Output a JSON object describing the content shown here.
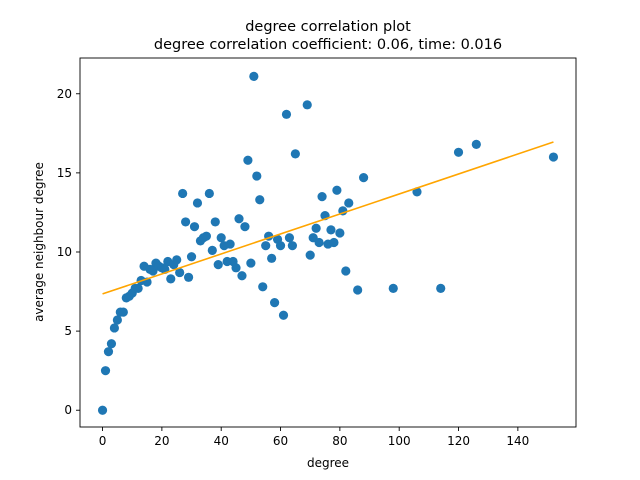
{
  "chart_data": {
    "type": "scatter",
    "title": "degree correlation plot",
    "subtitle": "degree correlation coefficient: 0.06, time: 0.016",
    "xlabel": "degree",
    "ylabel": "average neighbour degree",
    "xlim": [
      -7.6,
      159.6
    ],
    "ylim": [
      -1.06,
      22.26
    ],
    "xticks": [
      0,
      20,
      40,
      60,
      80,
      100,
      120,
      140
    ],
    "yticks": [
      0,
      5,
      10,
      15,
      20
    ],
    "grid": false,
    "colors": {
      "points": "#1f77b4",
      "fit": "#ffa500"
    },
    "fit_line": {
      "x": [
        0,
        152
      ],
      "y": [
        7.35,
        16.95
      ]
    },
    "points": [
      [
        0,
        0.0
      ],
      [
        1,
        2.5
      ],
      [
        2,
        3.7
      ],
      [
        3,
        4.2
      ],
      [
        4,
        5.2
      ],
      [
        5,
        5.7
      ],
      [
        6,
        6.2
      ],
      [
        7,
        6.2
      ],
      [
        8,
        7.1
      ],
      [
        9,
        7.2
      ],
      [
        10,
        7.4
      ],
      [
        11,
        7.7
      ],
      [
        12,
        7.7
      ],
      [
        13,
        8.2
      ],
      [
        14,
        9.1
      ],
      [
        15,
        8.1
      ],
      [
        16,
        8.9
      ],
      [
        17,
        8.8
      ],
      [
        18,
        9.3
      ],
      [
        19,
        9.1
      ],
      [
        20,
        9.0
      ],
      [
        21,
        8.9
      ],
      [
        22,
        9.4
      ],
      [
        23,
        8.3
      ],
      [
        24,
        9.2
      ],
      [
        25,
        9.5
      ],
      [
        26,
        8.7
      ],
      [
        27,
        13.7
      ],
      [
        28,
        11.9
      ],
      [
        29,
        8.4
      ],
      [
        30,
        9.7
      ],
      [
        31,
        11.6
      ],
      [
        32,
        13.1
      ],
      [
        33,
        10.7
      ],
      [
        34,
        10.9
      ],
      [
        35,
        11.0
      ],
      [
        36,
        13.7
      ],
      [
        37,
        10.1
      ],
      [
        38,
        11.9
      ],
      [
        39,
        9.2
      ],
      [
        40,
        10.9
      ],
      [
        41,
        10.4
      ],
      [
        42,
        9.4
      ],
      [
        43,
        10.5
      ],
      [
        44,
        9.4
      ],
      [
        45,
        9.0
      ],
      [
        46,
        12.1
      ],
      [
        47,
        8.5
      ],
      [
        48,
        11.6
      ],
      [
        49,
        15.8
      ],
      [
        50,
        9.3
      ],
      [
        51,
        21.1
      ],
      [
        52,
        14.8
      ],
      [
        53,
        13.3
      ],
      [
        54,
        7.8
      ],
      [
        55,
        10.4
      ],
      [
        56,
        11.0
      ],
      [
        57,
        9.6
      ],
      [
        58,
        6.8
      ],
      [
        59,
        10.8
      ],
      [
        60,
        10.4
      ],
      [
        61,
        6.0
      ],
      [
        62,
        18.7
      ],
      [
        63,
        10.9
      ],
      [
        64,
        10.4
      ],
      [
        65,
        16.2
      ],
      [
        69,
        19.3
      ],
      [
        70,
        9.8
      ],
      [
        71,
        10.9
      ],
      [
        72,
        11.5
      ],
      [
        73,
        10.6
      ],
      [
        74,
        13.5
      ],
      [
        75,
        12.3
      ],
      [
        76,
        10.5
      ],
      [
        77,
        11.4
      ],
      [
        78,
        10.6
      ],
      [
        79,
        13.9
      ],
      [
        80,
        11.2
      ],
      [
        81,
        12.6
      ],
      [
        82,
        8.8
      ],
      [
        83,
        13.1
      ],
      [
        86,
        7.6
      ],
      [
        88,
        14.7
      ],
      [
        98,
        7.7
      ],
      [
        106,
        13.8
      ],
      [
        114,
        7.7
      ],
      [
        120,
        16.3
      ],
      [
        126,
        16.8
      ],
      [
        152,
        16.0
      ]
    ]
  }
}
